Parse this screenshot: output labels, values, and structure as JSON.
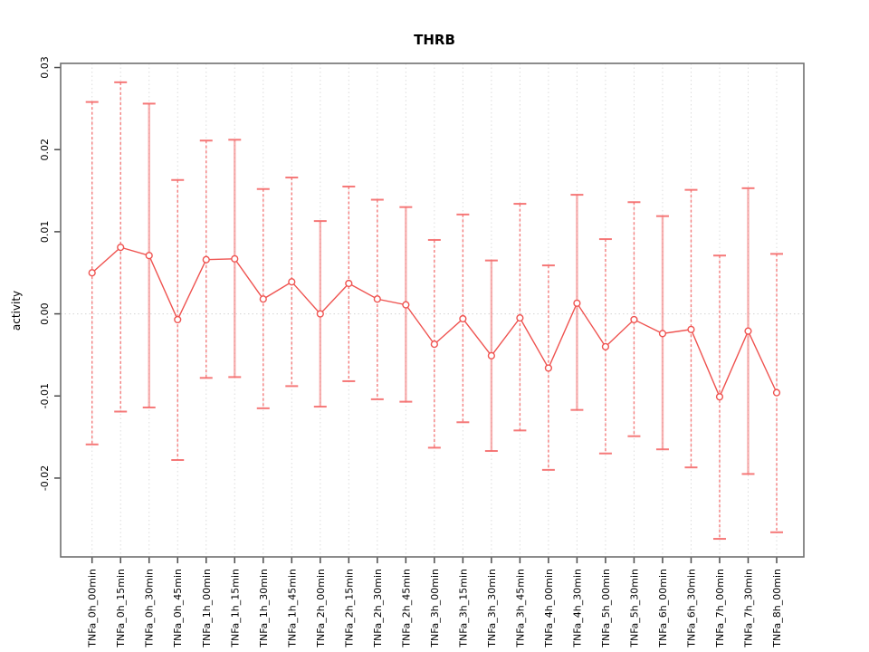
{
  "chart_data": {
    "type": "line",
    "title": "THRB",
    "xlabel": "",
    "ylabel": "activity",
    "legend": null,
    "grid": "dotted vertical gridline at each category; dotted horizontal line at y=0 only",
    "ylim": [
      -0.0296,
      0.0305
    ],
    "yticks": [
      0.03,
      0.02,
      0.01,
      0.0,
      -0.01,
      -0.02
    ],
    "ytick_labels": [
      "0.03",
      "0.02",
      "0.01",
      "0.00",
      "-0.01",
      "-0.02"
    ],
    "categories": [
      "TNFa_0h_00min",
      "TNFa_0h_15min",
      "TNFa_0h_30min",
      "TNFa_0h_45min",
      "TNFa_1h_00min",
      "TNFa_1h_15min",
      "TNFa_1h_30min",
      "TNFa_1h_45min",
      "TNFa_2h_00min",
      "TNFa_2h_15min",
      "TNFa_2h_30min",
      "TNFa_2h_45min",
      "TNFa_3h_00min",
      "TNFa_3h_15min",
      "TNFa_3h_30min",
      "TNFa_3h_45min",
      "TNFa_4h_00min",
      "TNFa_4h_30min",
      "TNFa_5h_00min",
      "TNFa_5h_30min",
      "TNFa_6h_00min",
      "TNFa_6h_30min",
      "TNFa_7h_00min",
      "TNFa_7h_30min",
      "TNFa_8h_00min"
    ],
    "series": [
      {
        "name": "activity",
        "values": [
          0.005,
          0.0081,
          0.0071,
          -0.0007,
          0.0066,
          0.0067,
          0.0018,
          0.0039,
          0.0,
          0.0037,
          0.0018,
          0.0011,
          -0.0037,
          -0.0006,
          -0.0051,
          -0.0005,
          -0.0066,
          0.0013,
          -0.004,
          -0.0007,
          -0.0024,
          -0.0019,
          -0.0101,
          -0.0021,
          -0.0096
        ],
        "error_upper": [
          0.0258,
          0.0282,
          0.0256,
          0.0163,
          0.0211,
          0.0212,
          0.0152,
          0.0166,
          0.0113,
          0.0155,
          0.0139,
          0.013,
          0.009,
          0.0121,
          0.0065,
          0.0134,
          0.0059,
          0.0145,
          0.0091,
          0.0136,
          0.0119,
          0.0151,
          0.0071,
          0.0153,
          0.0073
        ],
        "error_lower": [
          -0.0159,
          -0.0119,
          -0.0114,
          -0.0178,
          -0.0078,
          -0.0077,
          -0.0115,
          -0.0088,
          -0.0113,
          -0.0082,
          -0.0104,
          -0.0107,
          -0.0163,
          -0.0132,
          -0.0167,
          -0.0142,
          -0.019,
          -0.0117,
          -0.017,
          -0.0149,
          -0.0165,
          -0.0187,
          -0.0274,
          -0.0195,
          -0.0266
        ]
      }
    ],
    "colors": {
      "series": "#ef5350",
      "error_bar": "#f47070",
      "error_cap": "#f56a6a",
      "grid": "#dcdcdc",
      "zero_line": "#d4d4d4",
      "box": "#707070",
      "tick": "#4a4a4a",
      "text": "#000000"
    },
    "marker": "open-circle",
    "legend_position": "none"
  }
}
